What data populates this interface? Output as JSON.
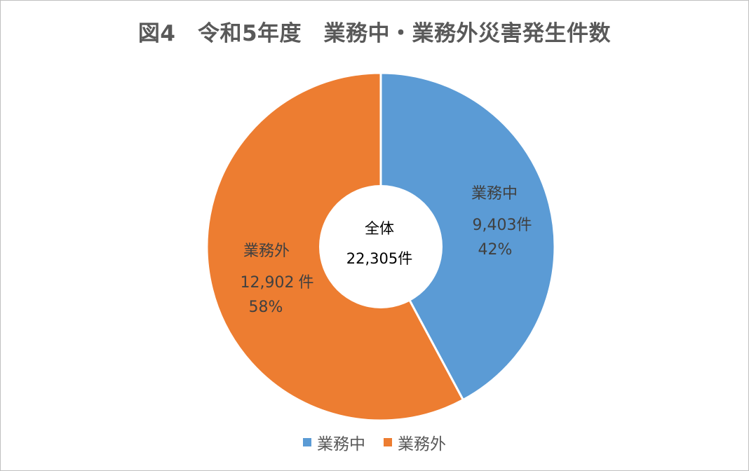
{
  "chart_data": {
    "type": "pie",
    "title": "図4　令和5年度　業務中・業務外災害発生件数",
    "center_label": {
      "line1": "全体",
      "line2": "22,305件"
    },
    "slices": [
      {
        "name": "業務中",
        "value": 9403,
        "count_label": "9,403",
        "unit": "件",
        "percent_label": "42%",
        "color": "#5B9BD5"
      },
      {
        "name": "業務外",
        "value": 12902,
        "count_label": "12,902",
        "unit": "件",
        "percent_label": "58%",
        "color": "#ED7D31"
      }
    ],
    "legend": [
      "業務中",
      "業務外"
    ],
    "legend_position": "bottom"
  }
}
